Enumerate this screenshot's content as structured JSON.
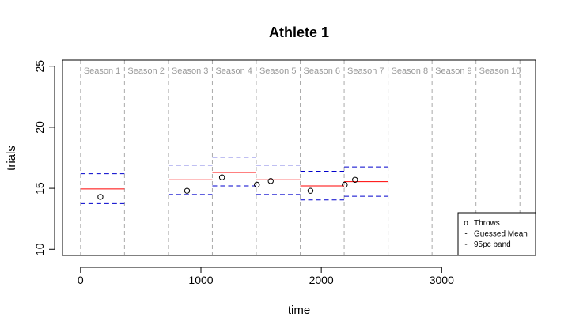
{
  "chart_data": {
    "type": "scatter",
    "title": "Athlete  1",
    "xlabel": "time",
    "ylabel": "trials",
    "xlim": [
      -150,
      3780
    ],
    "ylim": [
      9.5,
      25.5
    ],
    "x_ticks": [
      0,
      1000,
      2000,
      3000
    ],
    "x_tick_labels": [
      "0",
      "1000",
      "2000",
      "3000"
    ],
    "y_ticks": [
      10,
      15,
      20,
      25
    ],
    "y_tick_labels": [
      "10",
      "15",
      "20",
      "25"
    ],
    "grid": false,
    "season_boundaries": [
      0,
      365,
      730,
      1095,
      1460,
      1825,
      2190,
      2555,
      2920,
      3285,
      3650
    ],
    "season_labels": [
      "Season 1",
      "Season 2",
      "Season 3",
      "Season 4",
      "Season 5",
      "Season 6",
      "Season 7",
      "Season 8",
      "Season 9",
      "Season 10"
    ],
    "series": [
      {
        "name": "Throws",
        "kind": "points",
        "x": [
          165,
          885,
          1175,
          1465,
          1580,
          1910,
          2195,
          2280
        ],
        "y": [
          14.3,
          14.8,
          15.9,
          15.3,
          15.6,
          14.8,
          15.3,
          15.7
        ]
      },
      {
        "name": "Guessed Mean",
        "kind": "segments",
        "color": "#ff0000",
        "segments": [
          {
            "x0": 0,
            "x1": 365,
            "y": 14.95
          },
          {
            "x0": 730,
            "x1": 1095,
            "y": 15.7
          },
          {
            "x0": 1095,
            "x1": 1460,
            "y": 16.3
          },
          {
            "x0": 1460,
            "x1": 1825,
            "y": 15.7
          },
          {
            "x0": 1825,
            "x1": 2190,
            "y": 15.2
          },
          {
            "x0": 2190,
            "x1": 2555,
            "y": 15.55
          }
        ]
      },
      {
        "name": "95pc band",
        "kind": "segments",
        "color": "#0000cc",
        "segments": [
          {
            "x0": 0,
            "x1": 365,
            "y": 16.2
          },
          {
            "x0": 0,
            "x1": 365,
            "y": 13.75
          },
          {
            "x0": 730,
            "x1": 1095,
            "y": 16.9
          },
          {
            "x0": 730,
            "x1": 1095,
            "y": 14.5
          },
          {
            "x0": 1095,
            "x1": 1460,
            "y": 17.55
          },
          {
            "x0": 1095,
            "x1": 1460,
            "y": 15.2
          },
          {
            "x0": 1460,
            "x1": 1825,
            "y": 16.9
          },
          {
            "x0": 1460,
            "x1": 1825,
            "y": 14.5
          },
          {
            "x0": 1825,
            "x1": 2190,
            "y": 16.4
          },
          {
            "x0": 1825,
            "x1": 2190,
            "y": 14.05
          },
          {
            "x0": 2190,
            "x1": 2555,
            "y": 16.75
          },
          {
            "x0": 2190,
            "x1": 2555,
            "y": 14.35
          }
        ]
      }
    ],
    "legend": {
      "position": "bottom-right",
      "entries": [
        {
          "symbol": "o",
          "label": "Throws"
        },
        {
          "symbol": "-",
          "label": "Guessed Mean"
        },
        {
          "symbol": "-",
          "label": "95pc band"
        }
      ]
    },
    "colors": {
      "season_line": "#aaaaaa",
      "season_text": "#9a9a9a",
      "mean": "#ff0000",
      "band": "#0000cc",
      "points": "#000000"
    }
  }
}
